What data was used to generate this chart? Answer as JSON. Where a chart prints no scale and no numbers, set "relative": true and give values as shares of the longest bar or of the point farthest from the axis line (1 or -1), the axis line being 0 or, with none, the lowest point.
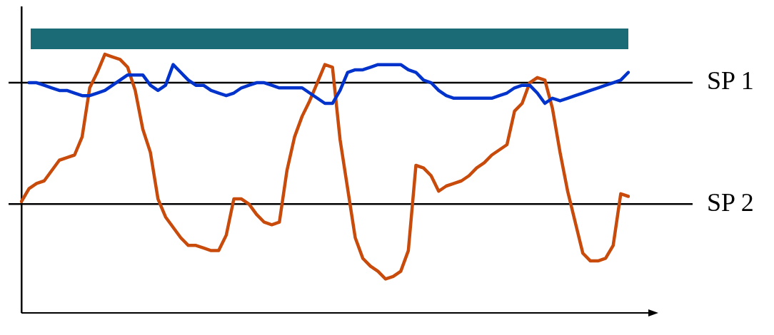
{
  "chart_data": {
    "type": "line",
    "relative": true,
    "categories": [
      null,
      null,
      null,
      null,
      null,
      null,
      null,
      null,
      null,
      null,
      null,
      null,
      null,
      null,
      null,
      null,
      null,
      null,
      null,
      null,
      null,
      null,
      null,
      null,
      null,
      null,
      null,
      null,
      null,
      null,
      null,
      null,
      null,
      null,
      null,
      null,
      null,
      null,
      null,
      null,
      null,
      null,
      null,
      null,
      null,
      null,
      null,
      null,
      null,
      null,
      null,
      null,
      null,
      null,
      null,
      null,
      null,
      null,
      null,
      null,
      null,
      null,
      null,
      null,
      null,
      null,
      null,
      null,
      null,
      null,
      null,
      null,
      null,
      null,
      null,
      null,
      null,
      null,
      null,
      null,
      null
    ],
    "series": [
      {
        "color": "#0033cc",
        "values": [
          null,
          0.89,
          0.89,
          0.88,
          0.87,
          0.86,
          0.86,
          0.85,
          0.84,
          0.84,
          0.85,
          0.86,
          0.88,
          0.9,
          0.92,
          0.92,
          0.92,
          0.88,
          0.86,
          0.88,
          0.96,
          0.93,
          0.9,
          0.88,
          0.88,
          0.86,
          0.85,
          0.84,
          0.85,
          0.87,
          0.88,
          0.89,
          0.89,
          0.88,
          0.87,
          0.87,
          0.87,
          0.87,
          0.85,
          0.83,
          0.81,
          0.81,
          0.86,
          0.93,
          0.94,
          0.94,
          0.95,
          0.96,
          0.96,
          0.96,
          0.96,
          0.94,
          0.93,
          0.9,
          0.89,
          0.86,
          0.84,
          0.83,
          0.83,
          0.83,
          0.83,
          0.83,
          0.83,
          0.84,
          0.85,
          0.87,
          0.88,
          0.88,
          0.85,
          0.81,
          0.83,
          0.82,
          0.83,
          0.84,
          0.85,
          0.86,
          0.87,
          0.88,
          0.89,
          0.9,
          0.93
        ]
      },
      {
        "color": "#c84b0c",
        "values": [
          0.43,
          0.48,
          0.5,
          0.51,
          0.55,
          0.59,
          0.6,
          0.61,
          0.68,
          0.87,
          0.93,
          1.0,
          0.99,
          0.98,
          0.95,
          0.86,
          0.71,
          0.62,
          0.44,
          0.37,
          0.33,
          0.29,
          0.26,
          0.26,
          0.25,
          0.24,
          0.24,
          0.3,
          0.44,
          0.44,
          0.42,
          0.38,
          0.35,
          0.34,
          0.35,
          0.55,
          0.68,
          0.76,
          0.82,
          0.89,
          0.96,
          0.95,
          0.67,
          0.48,
          0.29,
          0.21,
          0.18,
          0.16,
          0.13,
          0.14,
          0.16,
          0.24,
          0.57,
          0.56,
          0.53,
          0.47,
          0.49,
          0.5,
          0.51,
          0.53,
          0.56,
          0.58,
          0.61,
          0.63,
          0.65,
          0.78,
          0.81,
          0.89,
          0.91,
          0.9,
          0.79,
          0.62,
          0.47,
          0.35,
          0.23,
          0.2,
          0.2,
          0.21,
          0.26,
          0.46,
          0.45
        ]
      }
    ],
    "ref_lines": [
      {
        "axis": "y",
        "value": 0.89,
        "label": "SP 1"
      },
      {
        "axis": "y",
        "value": 0.42,
        "label": "SP 2"
      }
    ],
    "bands": [
      {
        "axis": "y",
        "from": 1.02,
        "to": 1.1,
        "color": "#1a6b75"
      }
    ],
    "grid": false,
    "legend": false,
    "marker": "none",
    "line_style": "solid"
  }
}
